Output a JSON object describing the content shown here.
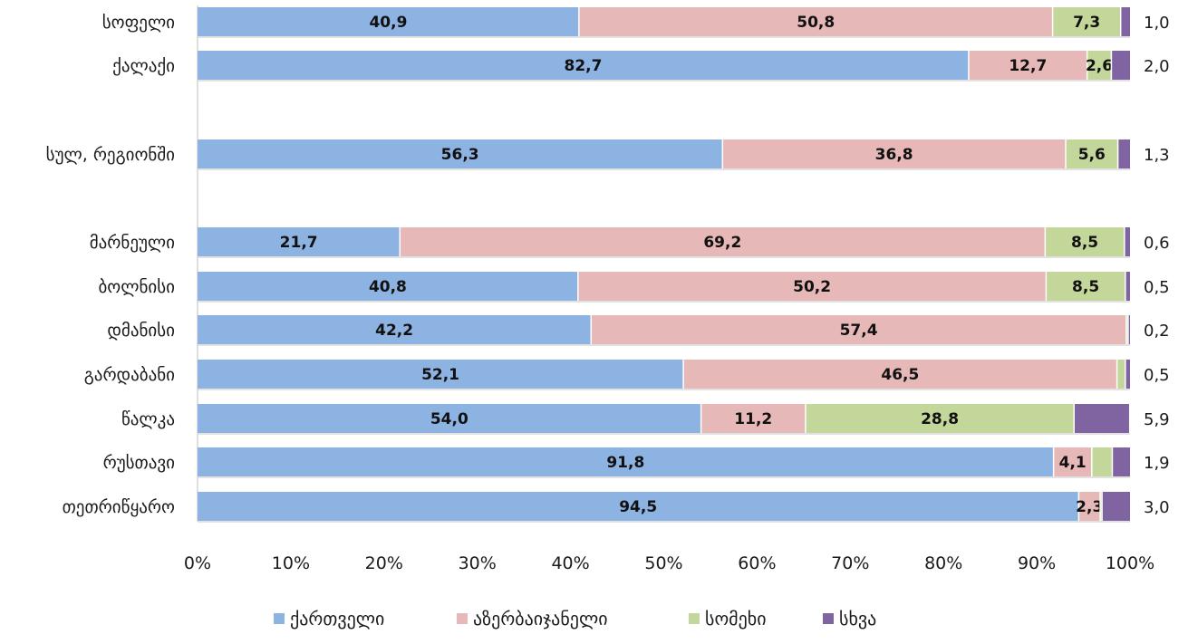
{
  "chart_data": {
    "type": "bar",
    "orientation": "horizontal",
    "stacked": "percent",
    "categories": [
      "სოფელი",
      "ქალაქი",
      "სულ, რეგიონში",
      "მარნეული",
      "ბოლნისი",
      "დმანისი",
      "გარდაბანი",
      "წალკა",
      "რუსთავი",
      "თეთრიწყარო"
    ],
    "display_labels": {
      "series_0": [
        "40,9",
        "82,7",
        "56,3",
        "21,7",
        "40,8",
        "42,2",
        "52,1",
        "54,0",
        "91,8",
        "94,5"
      ],
      "series_1": [
        "50,8",
        "12,7",
        "36,8",
        "69,2",
        "50,2",
        "57,4",
        "46,5",
        "11,2",
        "4,1",
        "2,3"
      ],
      "series_2": [
        "7,3",
        "2,6",
        "5,6",
        "8,5",
        "8,5",
        "",
        "",
        "28,8",
        "",
        ""
      ],
      "series_3": [
        "1,0",
        "2,0",
        "1,3",
        "0,6",
        "0,5",
        "0,2",
        "0,5",
        "5,9",
        "1,9",
        "3,0"
      ]
    },
    "series": [
      {
        "name": "ქართველი",
        "color": "#8db3e2",
        "values": [
          40.9,
          82.7,
          56.3,
          21.7,
          40.8,
          42.2,
          52.1,
          54.0,
          91.8,
          94.5
        ]
      },
      {
        "name": "აზერბაიჯანელი",
        "color": "#e6b8b7",
        "values": [
          50.8,
          12.7,
          36.8,
          69.2,
          50.2,
          57.4,
          46.5,
          11.2,
          4.1,
          2.3
        ]
      },
      {
        "name": "სომეხი",
        "color": "#c4d79b",
        "values": [
          7.3,
          2.6,
          5.6,
          8.5,
          8.5,
          0.2,
          0.9,
          28.8,
          2.2,
          0.2
        ]
      },
      {
        "name": "სხვა",
        "color": "#8064a2",
        "values": [
          1.0,
          2.0,
          1.3,
          0.6,
          0.5,
          0.2,
          0.5,
          5.9,
          1.9,
          3.0
        ]
      }
    ],
    "xlim": [
      0,
      100
    ],
    "x_ticks": [
      "0%",
      "10%",
      "20%",
      "30%",
      "40%",
      "50%",
      "60%",
      "70%",
      "80%",
      "90%",
      "100%"
    ],
    "grid": false,
    "legend_position": "bottom"
  }
}
